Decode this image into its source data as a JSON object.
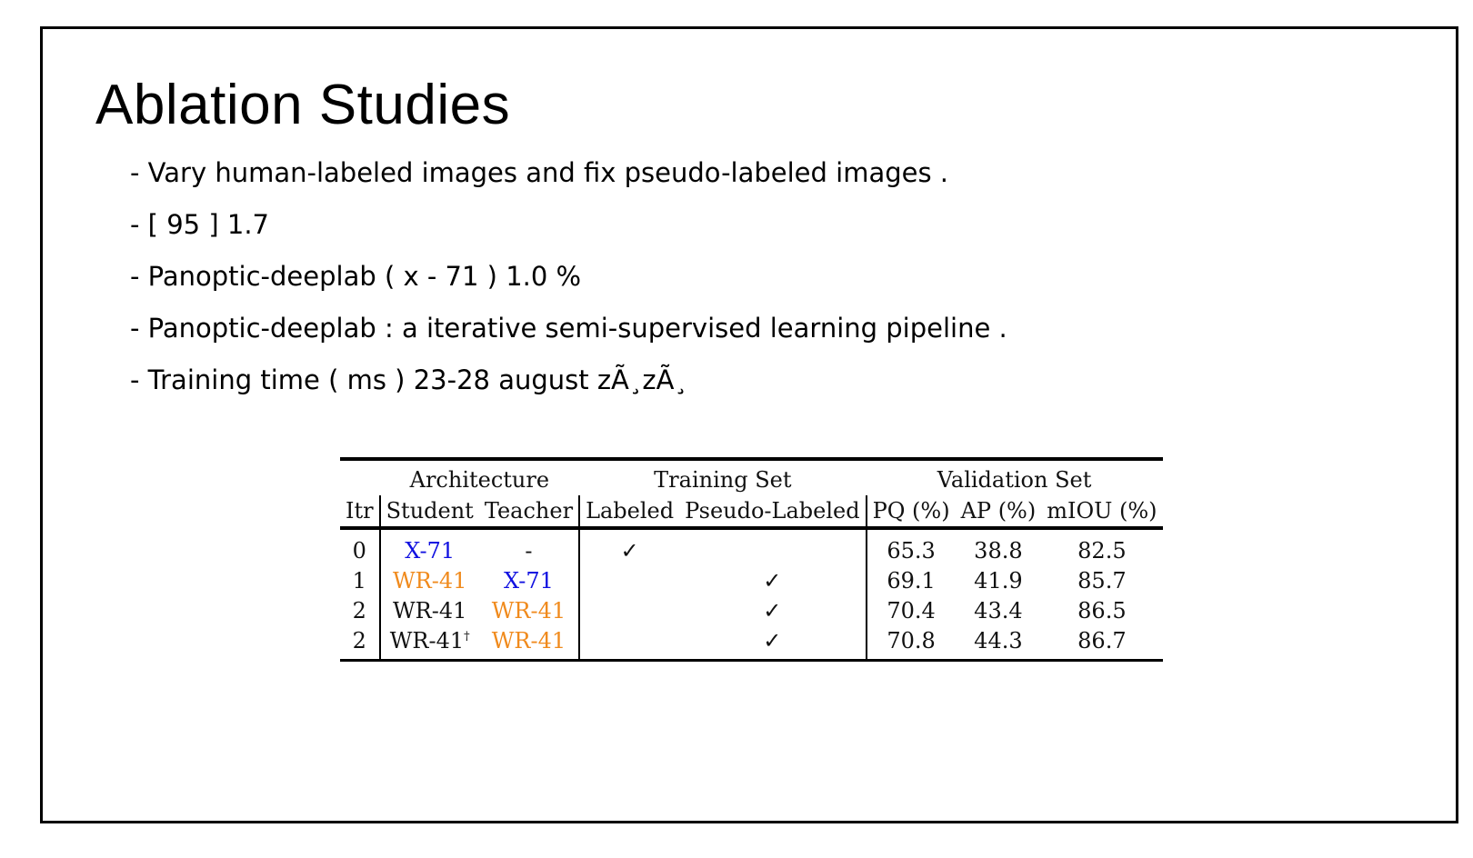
{
  "slide": {
    "title": "Ablation Studies",
    "bullets": [
      "- Vary human-labeled images and fix pseudo-labeled images .",
      "- [ 95 ] 1.7",
      "- Panoptic-deeplab ( x - 71 ) 1.0 %",
      "- Panoptic-deeplab : a iterative semi-supervised learning pipeline .",
      "- Training time ( ms ) 23-28 august zÃ¸zÃ¸"
    ]
  },
  "table": {
    "group_headers": {
      "architecture": "Architecture",
      "training_set": "Training Set",
      "validation_set": "Validation Set"
    },
    "columns": {
      "itr": "Itr",
      "student": "Student",
      "teacher": "Teacher",
      "labeled": "Labeled",
      "pseudo_labeled": "Pseudo-Labeled",
      "pq": "PQ (%)",
      "ap": "AP (%)",
      "miou": "mIOU (%)"
    },
    "rows": [
      {
        "itr": "0",
        "student": "X-71",
        "student_color": "#1010e0",
        "student_sup": "",
        "teacher": "-",
        "teacher_color": "#111111",
        "labeled": "✓",
        "pseudo": "",
        "pq": "65.3",
        "ap": "38.8",
        "miou": "82.5"
      },
      {
        "itr": "1",
        "student": "WR-41",
        "student_color": "#f08a1c",
        "student_sup": "",
        "teacher": "X-71",
        "teacher_color": "#1010e0",
        "labeled": "",
        "pseudo": "✓",
        "pq": "69.1",
        "ap": "41.9",
        "miou": "85.7"
      },
      {
        "itr": "2",
        "student": "WR-41",
        "student_color": "#111111",
        "student_sup": "",
        "teacher": "WR-41",
        "teacher_color": "#f08a1c",
        "labeled": "",
        "pseudo": "✓",
        "pq": "70.4",
        "ap": "43.4",
        "miou": "86.5"
      },
      {
        "itr": "2",
        "student": "WR-41",
        "student_color": "#111111",
        "student_sup": "†",
        "teacher": "WR-41",
        "teacher_color": "#f08a1c",
        "labeled": "",
        "pseudo": "✓",
        "pq": "70.8",
        "ap": "44.3",
        "miou": "86.7"
      }
    ]
  }
}
